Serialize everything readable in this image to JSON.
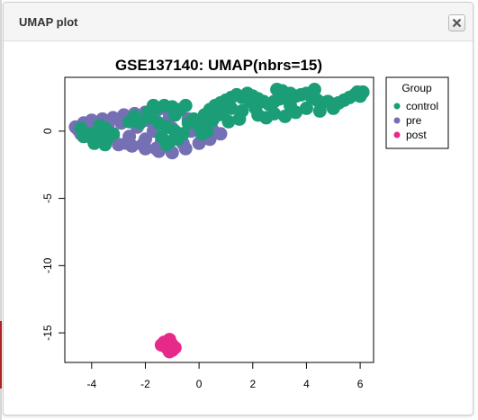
{
  "window": {
    "title": "UMAP plot",
    "close_icon": "close-icon"
  },
  "chart_data": {
    "type": "scatter",
    "title": "GSE137140: UMAP(nbrs=15)",
    "xlabel": "",
    "ylabel": "",
    "xlim": [
      -5,
      6.5
    ],
    "ylim": [
      -17.2,
      4
    ],
    "xticks": [
      -4,
      -2,
      0,
      2,
      4,
      6
    ],
    "yticks": [
      0,
      -5,
      -10,
      -15
    ],
    "grid": false,
    "legend": {
      "title": "Group",
      "placement": "top-right",
      "entries": [
        "control",
        "pre",
        "post"
      ]
    },
    "series": [
      {
        "name": "pre",
        "color": "#7570B3",
        "points": [
          [
            -4.6,
            0.3
          ],
          [
            -4.3,
            0.6
          ],
          [
            -4.0,
            0.8
          ],
          [
            -3.6,
            0.9
          ],
          [
            -3.2,
            1.0
          ],
          [
            -2.8,
            1.2
          ],
          [
            -2.4,
            1.3
          ],
          [
            -2.0,
            1.4
          ],
          [
            -1.6,
            1.5
          ],
          [
            -1.2,
            1.6
          ],
          [
            -0.8,
            1.6
          ],
          [
            -4.4,
            -0.2
          ],
          [
            -4.0,
            -0.5
          ],
          [
            -3.5,
            -0.8
          ],
          [
            -3.0,
            -1.0
          ],
          [
            -2.5,
            -1.1
          ],
          [
            -2.0,
            -1.3
          ],
          [
            -1.5,
            -1.5
          ],
          [
            -1.0,
            -1.6
          ],
          [
            -0.5,
            -1.3
          ],
          [
            0.0,
            -0.9
          ],
          [
            0.4,
            -0.6
          ],
          [
            0.8,
            -0.2
          ],
          [
            -3.8,
            0.0
          ],
          [
            -3.2,
            -0.3
          ],
          [
            -2.6,
            -0.4
          ],
          [
            -2.0,
            -0.6
          ],
          [
            -1.4,
            -0.8
          ],
          [
            -0.8,
            -0.5
          ],
          [
            -0.3,
            0.0
          ],
          [
            0.2,
            0.3
          ],
          [
            -2.3,
            0.3
          ],
          [
            -1.7,
            0.0
          ],
          [
            -1.0,
            0.2
          ],
          [
            -4.5,
            0.1
          ],
          [
            -3.9,
            0.3
          ],
          [
            -3.4,
            0.4
          ],
          [
            -2.9,
            0.6
          ],
          [
            -1.9,
            0.8
          ],
          [
            -1.3,
            -1.1
          ],
          [
            -0.6,
            -0.9
          ],
          [
            -2.7,
            -0.9
          ],
          [
            -3.6,
            -0.6
          ],
          [
            -1.1,
            1.0
          ],
          [
            -0.4,
            0.9
          ],
          [
            0.5,
            0.1
          ],
          [
            -2.1,
            -1.0
          ],
          [
            -1.6,
            -1.3
          ]
        ]
      },
      {
        "name": "control",
        "color": "#1B9E77",
        "points": [
          [
            -4.4,
            0.2
          ],
          [
            -4.0,
            -0.2
          ],
          [
            -3.7,
            0.0
          ],
          [
            -3.5,
            0.2
          ],
          [
            -3.8,
            -0.6
          ],
          [
            -3.4,
            -0.5
          ],
          [
            -4.3,
            -0.4
          ],
          [
            -3.9,
            -0.9
          ],
          [
            -3.5,
            -1.0
          ],
          [
            -3.7,
            0.4
          ],
          [
            -1.9,
            1.4
          ],
          [
            -1.6,
            1.7
          ],
          [
            -1.3,
            1.9
          ],
          [
            -1.0,
            1.8
          ],
          [
            -0.7,
            1.6
          ],
          [
            -1.8,
            1.0
          ],
          [
            -1.5,
            0.6
          ],
          [
            -1.2,
            0.3
          ],
          [
            -0.9,
            0.0
          ],
          [
            -0.6,
            -0.2
          ],
          [
            -1.4,
            -0.4
          ],
          [
            -1.1,
            -0.8
          ],
          [
            -0.8,
            -0.6
          ],
          [
            -2.2,
            0.6
          ],
          [
            -0.4,
            0.6
          ],
          [
            -0.2,
            0.9
          ],
          [
            -0.5,
            1.9
          ],
          [
            -1.7,
            1.9
          ],
          [
            -1.2,
            -1.0
          ],
          [
            0.2,
            1.2
          ],
          [
            0.4,
            1.6
          ],
          [
            0.6,
            1.9
          ],
          [
            0.8,
            2.1
          ],
          [
            1.0,
            2.3
          ],
          [
            1.2,
            2.5
          ],
          [
            1.4,
            2.7
          ],
          [
            1.6,
            2.5
          ],
          [
            0.9,
            1.5
          ],
          [
            1.2,
            1.7
          ],
          [
            0.5,
            0.8
          ],
          [
            0.7,
            1.2
          ],
          [
            1.8,
            2.8
          ],
          [
            2.0,
            2.6
          ],
          [
            2.2,
            2.4
          ],
          [
            2.4,
            2.2
          ],
          [
            2.6,
            2.0
          ],
          [
            2.8,
            2.2
          ],
          [
            3.0,
            2.4
          ],
          [
            3.2,
            2.6
          ],
          [
            3.4,
            2.8
          ],
          [
            3.6,
            2.6
          ],
          [
            3.8,
            2.7
          ],
          [
            4.0,
            2.8
          ],
          [
            4.2,
            2.5
          ],
          [
            4.4,
            2.3
          ],
          [
            4.6,
            2.1
          ],
          [
            4.8,
            2.2
          ],
          [
            5.0,
            2.0
          ],
          [
            5.2,
            2.1
          ],
          [
            5.4,
            2.3
          ],
          [
            5.6,
            2.5
          ],
          [
            5.8,
            2.7
          ],
          [
            6.0,
            2.6
          ],
          [
            6.1,
            2.9
          ],
          [
            5.9,
            2.9
          ],
          [
            2.2,
            1.2
          ],
          [
            2.5,
            1.0
          ],
          [
            2.8,
            1.3
          ],
          [
            3.2,
            1.1
          ],
          [
            3.6,
            1.4
          ],
          [
            4.0,
            1.7
          ],
          [
            4.5,
            1.5
          ],
          [
            5.0,
            1.7
          ],
          [
            3.4,
            1.9
          ],
          [
            2.1,
            1.7
          ],
          [
            1.6,
            1.5
          ],
          [
            1.9,
            2.2
          ],
          [
            3.1,
            3.0
          ],
          [
            2.9,
            3.1
          ],
          [
            4.3,
            3.1
          ],
          [
            1.5,
            0.9
          ],
          [
            1.1,
            0.7
          ],
          [
            0.1,
            -0.2
          ],
          [
            0.0,
            0.4
          ],
          [
            -2.6,
            0.7
          ],
          [
            -2.4,
            1.1
          ],
          [
            -3.2,
            -0.2
          ],
          [
            -0.9,
            1.2
          ],
          [
            0.3,
            0.0
          ]
        ]
      },
      {
        "name": "post",
        "color": "#E7298A",
        "points": [
          [
            -1.3,
            -15.7
          ],
          [
            -1.1,
            -15.5
          ],
          [
            -1.0,
            -15.9
          ],
          [
            -1.2,
            -16.1
          ],
          [
            -1.0,
            -16.3
          ],
          [
            -0.9,
            -16.1
          ],
          [
            -1.4,
            -15.9
          ],
          [
            -1.1,
            -16.4
          ]
        ]
      }
    ]
  }
}
